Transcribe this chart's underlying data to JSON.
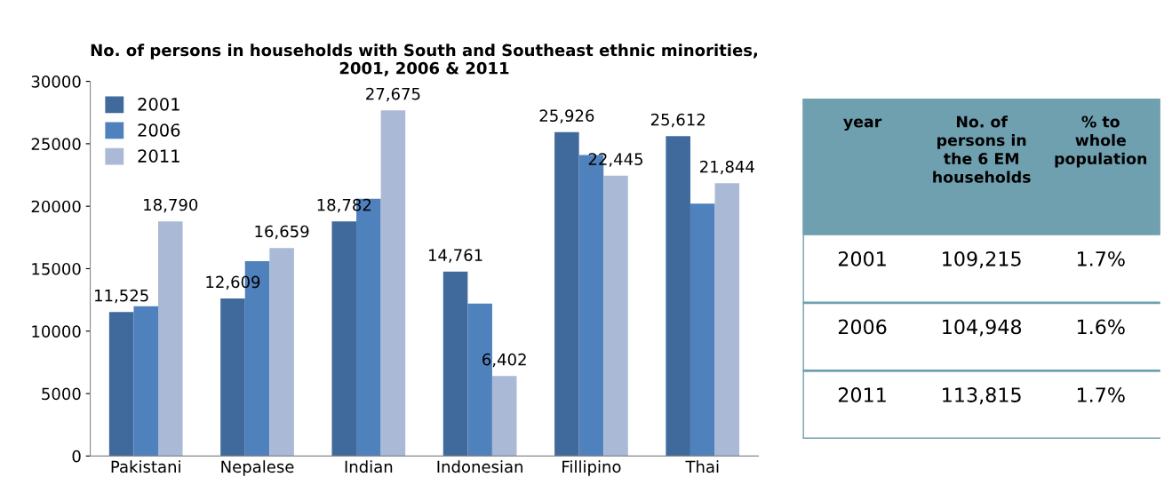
{
  "chart_data": [
    {
      "type": "bar",
      "title": "No. of persons in households with South and Southeast ethnic minorities,\n2001, 2006 & 2011",
      "categories": [
        "Pakistani",
        "Nepalese",
        "Indian",
        "Indonesian",
        "Fillipino",
        "Thai"
      ],
      "series": [
        {
          "name": "2001",
          "color": "#416a9c",
          "values": [
            11525,
            12609,
            18782,
            14761,
            25926,
            25612
          ],
          "value_labels": [
            "11,525",
            "12,609",
            "18,782",
            "14,761",
            "25,926",
            "25,612"
          ]
        },
        {
          "name": "2006",
          "color": "#4f81bd",
          "values": [
            12000,
            15600,
            20600,
            12200,
            24100,
            20200
          ]
        },
        {
          "name": "2011",
          "color": "#aab9d6",
          "values": [
            18790,
            16659,
            27675,
            6402,
            22445,
            21844
          ],
          "value_labels": [
            "18,790",
            "16,659",
            "27,675",
            "6,402",
            "22,445",
            "21,844"
          ]
        }
      ],
      "ylim": [
        0,
        30000
      ],
      "yticks": [
        0,
        5000,
        10000,
        15000,
        20000,
        25000,
        30000
      ],
      "grid": false,
      "legend": "top left"
    },
    {
      "type": "other",
      "color": "#6fa0b0",
      "categories": [
        "year",
        "No. of\npersons in\nthe 6 EM\nhouseholds",
        "% to\nwhole\npopulation"
      ],
      "cell_labels": [
        [
          "2001",
          "109,215",
          "1.7%"
        ],
        [
          "2006",
          "104,948",
          "1.6%"
        ],
        [
          "2011",
          "113,815",
          "1.7%"
        ]
      ]
    }
  ]
}
